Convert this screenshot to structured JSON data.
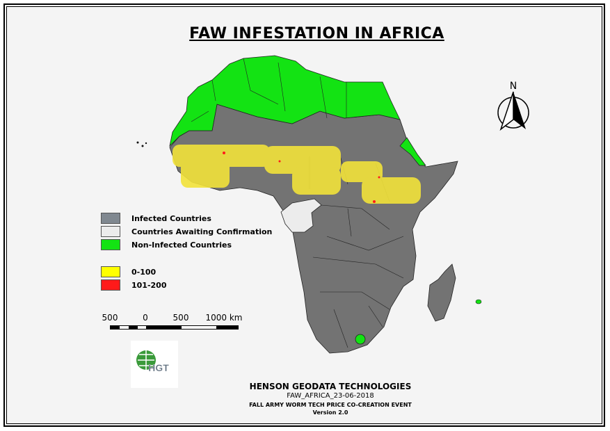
{
  "title": "FAW INFESTATION IN AFRICA",
  "legend": {
    "items": [
      {
        "label": "Infected Countries",
        "color": "#808890"
      },
      {
        "label": "Countries Awaiting Confirmation",
        "color": "#ececec"
      },
      {
        "label": "Non-Infected Countries",
        "color": "#13e313"
      }
    ],
    "density": [
      {
        "label": "0-100",
        "color": "#ffff00"
      },
      {
        "label": "101-200",
        "color": "#ff1a1a"
      }
    ]
  },
  "scale": {
    "labels": [
      "500",
      "0",
      "500",
      "1000 km"
    ]
  },
  "north_arrow": {
    "label": "N",
    "icon": "north-arrow-icon"
  },
  "logo": {
    "text": "HGT"
  },
  "footer": {
    "company": "HENSON GEODATA TECHNOLOGIES",
    "map_id": "FAW_AFRICA_23-06-2018",
    "event": "FALL ARMY WORM TECH PRICE CO-CREATION EVENT",
    "version": "Version 2.0"
  },
  "colors": {
    "infected": "#737373",
    "non_infected": "#13e313",
    "awaiting": "#ececec",
    "low": "#f2e23a",
    "high": "#ff1a1a"
  }
}
